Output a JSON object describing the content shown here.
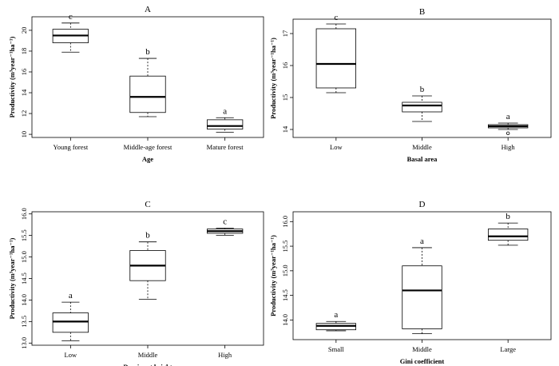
{
  "chart_data": [
    {
      "type": "box",
      "title": "A",
      "xlabel": "Age",
      "ylabel": "Productivity (m³year⁻¹ha⁻¹)",
      "ylim": [
        9.7,
        21.3
      ],
      "yticks": [
        "10",
        "12",
        "14",
        "16",
        "18",
        "20"
      ],
      "categories": [
        "Young forest",
        "Middle-age forest",
        "Mature forest"
      ],
      "boxes": [
        {
          "min": 17.9,
          "q1": 18.8,
          "median": 19.5,
          "q3": 20.1,
          "max": 20.7,
          "letter": "c",
          "outliers": []
        },
        {
          "min": 11.7,
          "q1": 12.1,
          "median": 13.6,
          "q3": 15.6,
          "max": 17.3,
          "letter": "b",
          "outliers": []
        },
        {
          "min": 10.2,
          "q1": 10.5,
          "median": 10.8,
          "q3": 11.4,
          "max": 11.6,
          "letter": "a",
          "outliers": []
        }
      ]
    },
    {
      "type": "box",
      "title": "B",
      "xlabel": "Basal area",
      "ylabel": "Productivity (m³year⁻¹ha⁻¹)",
      "ylim": [
        13.75,
        17.45
      ],
      "yticks": [
        "14",
        "15",
        "16",
        "17"
      ],
      "categories": [
        "Low",
        "Middle",
        "High"
      ],
      "boxes": [
        {
          "min": 15.15,
          "q1": 15.3,
          "median": 16.05,
          "q3": 17.15,
          "max": 17.3,
          "letter": "c",
          "outliers": []
        },
        {
          "min": 14.25,
          "q1": 14.55,
          "median": 14.75,
          "q3": 14.85,
          "max": 15.05,
          "letter": "b",
          "outliers": []
        },
        {
          "min": 14.0,
          "q1": 14.05,
          "median": 14.1,
          "q3": 14.15,
          "max": 14.2,
          "letter": "a",
          "outliers": [
            13.88
          ]
        }
      ]
    },
    {
      "type": "box",
      "title": "C",
      "xlabel": "Dominant height",
      "ylabel": "Productivity (m³year⁻¹ha⁻¹)",
      "ylim": [
        12.95,
        16.05
      ],
      "yticks": [
        "13.0",
        "13.5",
        "14.0",
        "14.5",
        "15.0",
        "15.5",
        "16.0"
      ],
      "categories": [
        "Low",
        "Middle",
        "High"
      ],
      "boxes": [
        {
          "min": 13.05,
          "q1": 13.25,
          "median": 13.5,
          "q3": 13.7,
          "max": 13.95,
          "letter": "a",
          "outliers": []
        },
        {
          "min": 14.02,
          "q1": 14.45,
          "median": 14.8,
          "q3": 15.15,
          "max": 15.35,
          "letter": "b",
          "outliers": []
        },
        {
          "min": 15.5,
          "q1": 15.55,
          "median": 15.6,
          "q3": 15.65,
          "max": 15.67,
          "letter": "c",
          "outliers": []
        }
      ]
    },
    {
      "type": "box",
      "title": "D",
      "xlabel": "Gini coefficient",
      "ylabel": "Productivity (m³year⁻¹ha⁻¹)",
      "ylim": [
        13.6,
        16.2
      ],
      "yticks": [
        "14.0",
        "14.5",
        "15.0",
        "15.5",
        "16.0"
      ],
      "categories": [
        "Small",
        "Middle",
        "Large"
      ],
      "boxes": [
        {
          "min": 13.78,
          "q1": 13.8,
          "median": 13.88,
          "q3": 13.93,
          "max": 13.97,
          "letter": "a",
          "outliers": []
        },
        {
          "min": 13.72,
          "q1": 13.82,
          "median": 14.6,
          "q3": 15.1,
          "max": 15.47,
          "letter": "a",
          "outliers": []
        },
        {
          "min": 15.52,
          "q1": 15.62,
          "median": 15.7,
          "q3": 15.85,
          "max": 15.97,
          "letter": "b",
          "outliers": []
        }
      ]
    }
  ]
}
